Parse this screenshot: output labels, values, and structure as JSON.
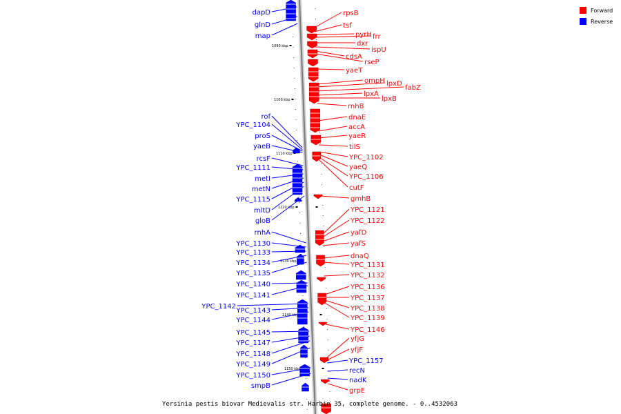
{
  "caption": "Yersinia pestis biovar Medievalis str. Harbin 35, complete genome. - 0..4532063",
  "legend": [
    {
      "label": "Forward",
      "color": "#ff0000"
    },
    {
      "label": "Reverse",
      "color": "#0000ff"
    }
  ],
  "ticks": [
    "1090 kbp",
    "1100 kbp",
    "1110 kbp",
    "1120 kbp",
    "1130 kbp",
    "1140 kbp",
    "1150 kbp"
  ],
  "reverse_genes": [
    "dapD",
    "glnD",
    "map",
    "rof",
    "YPC_1104",
    "proS",
    "yaeB",
    "rcsF",
    "YPC_1111",
    "metI",
    "metN",
    "YPC_1115",
    "mltD",
    "gloB",
    "rnhA",
    "YPC_1130",
    "YPC_1133",
    "YPC_1134",
    "YPC_1135",
    "YPC_1140",
    "YPC_1141",
    "YPC_1142",
    "YPC_1143",
    "YPC_1144",
    "YPC_1145",
    "YPC_1147",
    "YPC_1148",
    "YPC_1149",
    "YPC_1150",
    "smpB"
  ],
  "forward_genes": [
    "rpsB",
    "tsf",
    "pyrH",
    "frr",
    "dxr",
    "ispU",
    "cdsA",
    "rseP",
    "yaeT",
    "ompH",
    "lpxD",
    "fabZ",
    "lpxA",
    "lpxB",
    "rnhB",
    "dnaE",
    "accA",
    "yaeR",
    "tilS",
    "YPC_1102",
    "yaeQ",
    "YPC_1106",
    "cutF",
    "gmhB",
    "YPC_1121",
    "YPC_1122",
    "yafD",
    "yafS",
    "dnaQ",
    "YPC_1131",
    "YPC_1132",
    "YPC_1136",
    "YPC_1137",
    "YPC_1138",
    "YPC_1139",
    "YPC_1146",
    "yfjG",
    "yfjF",
    "YPC_1157",
    "recN",
    "nadK",
    "grpE"
  ],
  "reverse_features_on_forward_side": [
    "YPC_1157",
    "recN",
    "nadK"
  ]
}
